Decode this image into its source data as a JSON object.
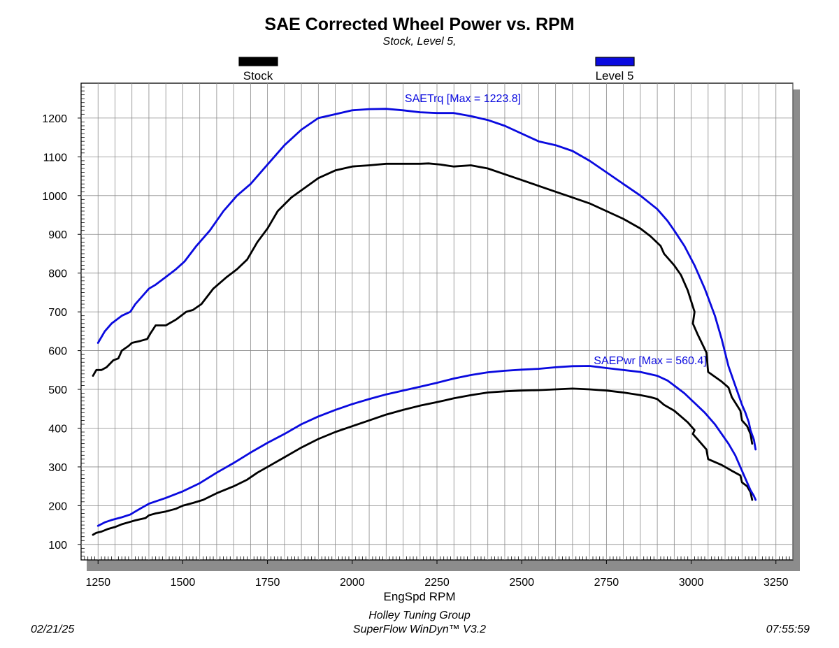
{
  "chart_data": {
    "type": "line",
    "title": "SAE Corrected Wheel Power vs. RPM",
    "subtitle": "Stock, Level 5,",
    "xlabel": "EngSpd RPM",
    "ylabel": "",
    "xlim": [
      1200,
      3300
    ],
    "ylim": [
      60,
      1290
    ],
    "x_ticks": [
      1250,
      1500,
      1750,
      2000,
      2250,
      2500,
      2750,
      3000,
      3250
    ],
    "y_ticks": [
      100,
      200,
      300,
      400,
      500,
      600,
      700,
      800,
      900,
      1000,
      1100,
      1200
    ],
    "grid": true,
    "legend": {
      "placement": "top",
      "entries": [
        {
          "label": "Stock",
          "color": "#000000"
        },
        {
          "label": "Level 5",
          "color": "#0a0adf"
        }
      ]
    },
    "annotations": {
      "torque_max": "SAETrq [Max = 1223.8]",
      "power_max": "SAEPwr [Max = 560.4]"
    },
    "series": [
      {
        "name": "Stock",
        "measure": "SAETrq",
        "color": "#000000",
        "x": [
          1235,
          1245,
          1260,
          1275,
          1295,
          1310,
          1320,
          1340,
          1350,
          1375,
          1395,
          1405,
          1420,
          1450,
          1480,
          1510,
          1530,
          1555,
          1590,
          1630,
          1660,
          1690,
          1720,
          1750,
          1780,
          1820,
          1860,
          1900,
          1950,
          2000,
          2050,
          2100,
          2150,
          2200,
          2225,
          2260,
          2300,
          2350,
          2400,
          2450,
          2500,
          2550,
          2600,
          2650,
          2700,
          2750,
          2800,
          2850,
          2880,
          2910,
          2920,
          2950,
          2970,
          2990,
          3010,
          3005,
          3020,
          3045,
          3050,
          3090,
          3110,
          3120,
          3145,
          3150,
          3165,
          3175,
          3180
        ],
        "values": [
          535,
          550,
          550,
          557,
          575,
          580,
          600,
          612,
          620,
          625,
          630,
          645,
          665,
          665,
          680,
          700,
          705,
          720,
          760,
          790,
          810,
          835,
          880,
          915,
          960,
          995,
          1020,
          1045,
          1065,
          1075,
          1078,
          1082,
          1082,
          1082,
          1083,
          1080,
          1075,
          1078,
          1070,
          1055,
          1040,
          1025,
          1010,
          995,
          980,
          960,
          940,
          915,
          895,
          870,
          850,
          820,
          795,
          755,
          700,
          670,
          640,
          595,
          545,
          520,
          505,
          480,
          445,
          420,
          405,
          385,
          360
        ]
      },
      {
        "name": "Level 5",
        "measure": "SAETrq",
        "color": "#0a0adf",
        "x": [
          1250,
          1270,
          1290,
          1320,
          1345,
          1360,
          1380,
          1400,
          1420,
          1450,
          1480,
          1505,
          1540,
          1580,
          1620,
          1660,
          1700,
          1750,
          1800,
          1850,
          1900,
          1950,
          2000,
          2050,
          2100,
          2150,
          2200,
          2250,
          2300,
          2350,
          2400,
          2450,
          2500,
          2550,
          2600,
          2650,
          2700,
          2750,
          2800,
          2850,
          2900,
          2930,
          2950,
          2980,
          3010,
          3040,
          3070,
          3090,
          3110,
          3130,
          3150,
          3160,
          3170,
          3175,
          3185,
          3190
        ],
        "values": [
          620,
          650,
          670,
          690,
          700,
          720,
          740,
          760,
          770,
          790,
          810,
          830,
          870,
          910,
          960,
          1000,
          1030,
          1080,
          1130,
          1170,
          1200,
          1210,
          1220,
          1223,
          1223.8,
          1220,
          1215,
          1213,
          1213,
          1205,
          1195,
          1180,
          1160,
          1140,
          1130,
          1115,
          1090,
          1060,
          1030,
          1000,
          965,
          935,
          910,
          870,
          820,
          760,
          690,
          630,
          560,
          510,
          460,
          440,
          415,
          395,
          370,
          345
        ]
      },
      {
        "name": "Stock",
        "measure": "SAEPwr",
        "color": "#000000",
        "x": [
          1235,
          1245,
          1260,
          1280,
          1300,
          1320,
          1340,
          1360,
          1390,
          1400,
          1420,
          1450,
          1480,
          1500,
          1530,
          1560,
          1600,
          1650,
          1690,
          1720,
          1760,
          1800,
          1850,
          1900,
          1950,
          2000,
          2050,
          2100,
          2150,
          2200,
          2250,
          2300,
          2350,
          2400,
          2450,
          2500,
          2550,
          2600,
          2650,
          2700,
          2750,
          2800,
          2850,
          2880,
          2900,
          2920,
          2950,
          2970,
          2990,
          3010,
          3005,
          3020,
          3045,
          3050,
          3090,
          3110,
          3120,
          3145,
          3150,
          3165,
          3175,
          3180
        ],
        "values": [
          125,
          130,
          133,
          140,
          145,
          152,
          157,
          162,
          168,
          175,
          180,
          185,
          192,
          200,
          207,
          215,
          232,
          250,
          267,
          285,
          305,
          325,
          350,
          372,
          390,
          405,
          420,
          435,
          447,
          458,
          467,
          477,
          485,
          492,
          495,
          497,
          498,
          500,
          502,
          500,
          497,
          492,
          485,
          480,
          475,
          460,
          445,
          430,
          415,
          395,
          385,
          370,
          345,
          320,
          305,
          295,
          290,
          278,
          260,
          250,
          235,
          215
        ]
      },
      {
        "name": "Level 5",
        "measure": "SAEPwr",
        "color": "#0a0adf",
        "x": [
          1250,
          1270,
          1290,
          1320,
          1345,
          1360,
          1380,
          1400,
          1450,
          1500,
          1550,
          1600,
          1650,
          1700,
          1750,
          1800,
          1850,
          1900,
          1950,
          2000,
          2050,
          2100,
          2150,
          2200,
          2250,
          2300,
          2350,
          2400,
          2450,
          2500,
          2550,
          2600,
          2650,
          2700,
          2750,
          2800,
          2850,
          2900,
          2930,
          2950,
          2980,
          3010,
          3040,
          3070,
          3090,
          3110,
          3130,
          3150,
          3160,
          3170,
          3175,
          3185,
          3190
        ],
        "values": [
          148,
          157,
          163,
          170,
          177,
          185,
          195,
          205,
          220,
          237,
          258,
          285,
          310,
          337,
          362,
          385,
          410,
          430,
          447,
          462,
          475,
          487,
          497,
          507,
          517,
          528,
          537,
          544,
          548,
          551,
          553,
          557,
          560,
          560.4,
          555,
          550,
          545,
          535,
          523,
          510,
          490,
          465,
          440,
          410,
          385,
          360,
          330,
          290,
          270,
          250,
          240,
          225,
          215
        ]
      }
    ]
  },
  "footer": {
    "date": "02/21/25",
    "company": "Holley Tuning Group",
    "software": "SuperFlow WinDyn™ V3.2",
    "time": "07:55:59"
  }
}
